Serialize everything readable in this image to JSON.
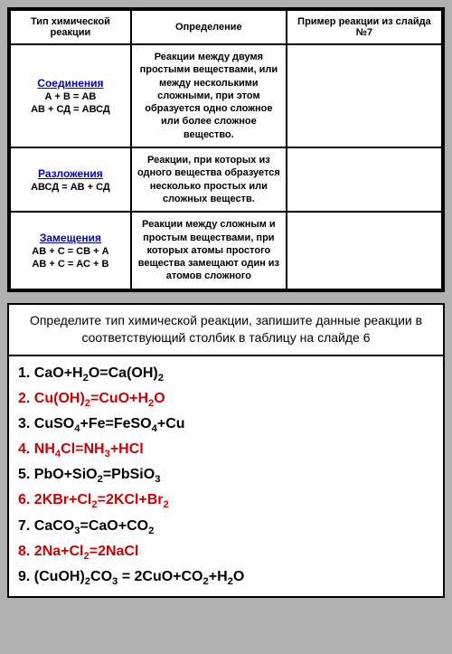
{
  "topTable": {
    "headers": [
      "Тип химической реакции",
      "Определение",
      "Пример реакции из слайда №7"
    ],
    "rows": [
      {
        "typeName": "Соединения",
        "typeFormulas": [
          "А + В = АВ",
          "АВ + СД = АВСД"
        ],
        "definition": "Реакции между двумя простыми веществами, или между несколькими сложными, при этом образуется одно сложное или более сложное вещество.",
        "example": ""
      },
      {
        "typeName": "Разложения",
        "typeFormulas": [
          "АВСД = АВ + СД"
        ],
        "definition": "Реакции, при которых из одного вещества образуется несколько простых или сложных веществ.",
        "example": ""
      },
      {
        "typeName": "Замещения",
        "typeFormulas": [
          "АВ + С = СВ + А",
          "АВ + С = АС + В"
        ],
        "definition": "Реакции между сложным и простым веществами, при которых атомы простого вещества замещают один из атомов сложного",
        "example": ""
      }
    ]
  },
  "task": {
    "header": "Определите тип химической реакции, запишите данные реакции в соответствующий столбик в таблицу на слайде 6",
    "reactions": [
      {
        "num": "1.",
        "text": "CaO+H₂O=Ca(OH)₂",
        "color": "#000000"
      },
      {
        "num": "2.",
        "text": "Cu(OH)₂=CuO+H₂O",
        "color": "#cc0000"
      },
      {
        "num": "3.",
        "text": "CuSO₄+Fe=FeSO₄+Cu",
        "color": "#000000"
      },
      {
        "num": "4.",
        "text": "NH₄Cl=NH₃+HCl",
        "color": "#cc0000"
      },
      {
        "num": "5.",
        "text": "PbO+SiO₂=PbSiO₃",
        "color": "#000000"
      },
      {
        "num": "6.",
        "text": "2KBr+Cl₂=2KCl+Br₂",
        "color": "#cc0000"
      },
      {
        "num": "7.",
        "text": "CaCO₃=CaO+CO₂",
        "color": "#000000"
      },
      {
        "num": "8.",
        "text": "2Na+Cl₂=2NaCl",
        "color": "#cc0000"
      },
      {
        "num": "9.",
        "text": "(CuOH)₂CO₃ = 2CuO+CO₂+H₂O",
        "color": "#000000"
      }
    ]
  },
  "colors": {
    "link": "#0000cc",
    "red": "#cc0000",
    "black": "#000000",
    "panelBg": "#ffffff",
    "pageBg": "#b0b0b0"
  }
}
